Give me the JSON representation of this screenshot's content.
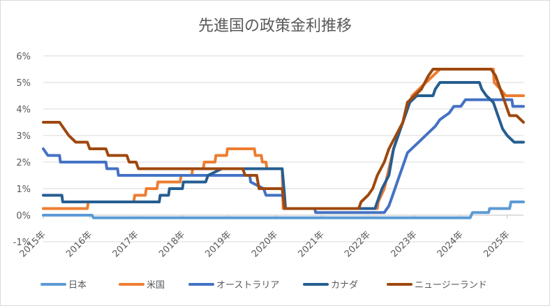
{
  "chart_data": {
    "type": "line",
    "title": "先進国の政策金利推移",
    "xlabel": "",
    "ylabel": "",
    "x_range": [
      2015.0,
      2025.35
    ],
    "ylim": [
      -1,
      6
    ],
    "y_ticks": [
      -1,
      0,
      1,
      2,
      3,
      4,
      5,
      6
    ],
    "y_tick_labels": [
      "-1%",
      "0%",
      "1%",
      "2%",
      "3%",
      "4%",
      "5%",
      "6%"
    ],
    "x_ticks": [
      2015,
      2016,
      2017,
      2018,
      2019,
      2020,
      2021,
      2022,
      2023,
      2024,
      2025
    ],
    "x_tick_labels": [
      "2015年",
      "2016年",
      "2017年",
      "2018年",
      "2019年",
      "2020年",
      "2021年",
      "2022年",
      "2023年",
      "2024年",
      "2025年"
    ],
    "grid": "horizontal",
    "legend_position": "bottom",
    "series": [
      {
        "name": "日本",
        "color": "#5b9bd5",
        "points": [
          [
            2015.0,
            0.0
          ],
          [
            2016.05,
            0.0
          ],
          [
            2016.08,
            -0.1
          ],
          [
            2024.2,
            -0.1
          ],
          [
            2024.25,
            0.1
          ],
          [
            2024.6,
            0.1
          ],
          [
            2024.62,
            0.25
          ],
          [
            2025.05,
            0.25
          ],
          [
            2025.08,
            0.5
          ],
          [
            2025.35,
            0.5
          ]
        ]
      },
      {
        "name": "米国",
        "color": "#ed7d31",
        "points": [
          [
            2015.0,
            0.25
          ],
          [
            2015.95,
            0.25
          ],
          [
            2015.97,
            0.5
          ],
          [
            2016.95,
            0.5
          ],
          [
            2016.97,
            0.75
          ],
          [
            2017.2,
            0.75
          ],
          [
            2017.22,
            1.0
          ],
          [
            2017.45,
            1.0
          ],
          [
            2017.47,
            1.25
          ],
          [
            2017.95,
            1.25
          ],
          [
            2017.97,
            1.5
          ],
          [
            2018.2,
            1.5
          ],
          [
            2018.22,
            1.75
          ],
          [
            2018.45,
            1.75
          ],
          [
            2018.47,
            2.0
          ],
          [
            2018.7,
            2.0
          ],
          [
            2018.72,
            2.25
          ],
          [
            2018.95,
            2.25
          ],
          [
            2018.97,
            2.5
          ],
          [
            2019.55,
            2.5
          ],
          [
            2019.57,
            2.25
          ],
          [
            2019.7,
            2.25
          ],
          [
            2019.72,
            2.0
          ],
          [
            2019.8,
            2.0
          ],
          [
            2019.82,
            1.75
          ],
          [
            2020.15,
            1.75
          ],
          [
            2020.17,
            0.25
          ],
          [
            2022.2,
            0.25
          ],
          [
            2022.22,
            0.5
          ],
          [
            2022.35,
            1.0
          ],
          [
            2022.45,
            1.75
          ],
          [
            2022.55,
            2.5
          ],
          [
            2022.7,
            3.25
          ],
          [
            2022.85,
            4.0
          ],
          [
            2022.95,
            4.5
          ],
          [
            2023.1,
            4.75
          ],
          [
            2023.25,
            5.0
          ],
          [
            2023.4,
            5.25
          ],
          [
            2023.55,
            5.5
          ],
          [
            2024.7,
            5.5
          ],
          [
            2024.72,
            5.0
          ],
          [
            2024.85,
            4.75
          ],
          [
            2024.97,
            4.5
          ],
          [
            2025.35,
            4.5
          ]
        ]
      },
      {
        "name": "オーストラリア",
        "color": "#4472c4",
        "points": [
          [
            2015.0,
            2.5
          ],
          [
            2015.1,
            2.25
          ],
          [
            2015.35,
            2.25
          ],
          [
            2015.37,
            2.0
          ],
          [
            2016.35,
            2.0
          ],
          [
            2016.37,
            1.75
          ],
          [
            2016.6,
            1.75
          ],
          [
            2016.62,
            1.5
          ],
          [
            2019.45,
            1.5
          ],
          [
            2019.47,
            1.25
          ],
          [
            2019.75,
            1.0
          ],
          [
            2019.8,
            0.75
          ],
          [
            2020.15,
            0.75
          ],
          [
            2020.2,
            0.5
          ],
          [
            2020.22,
            0.25
          ],
          [
            2020.85,
            0.25
          ],
          [
            2020.87,
            0.1
          ],
          [
            2022.35,
            0.1
          ],
          [
            2022.45,
            0.35
          ],
          [
            2022.55,
            0.85
          ],
          [
            2022.65,
            1.35
          ],
          [
            2022.75,
            1.85
          ],
          [
            2022.85,
            2.35
          ],
          [
            2023.0,
            2.6
          ],
          [
            2023.15,
            2.85
          ],
          [
            2023.3,
            3.1
          ],
          [
            2023.45,
            3.35
          ],
          [
            2023.55,
            3.6
          ],
          [
            2023.75,
            3.85
          ],
          [
            2023.85,
            4.1
          ],
          [
            2024.0,
            4.1
          ],
          [
            2024.1,
            4.35
          ],
          [
            2025.1,
            4.35
          ],
          [
            2025.12,
            4.1
          ],
          [
            2025.35,
            4.1
          ]
        ]
      },
      {
        "name": "カナダ",
        "color": "#255e91",
        "points": [
          [
            2015.0,
            0.75
          ],
          [
            2015.4,
            0.75
          ],
          [
            2015.42,
            0.5
          ],
          [
            2017.5,
            0.5
          ],
          [
            2017.52,
            0.75
          ],
          [
            2017.7,
            0.75
          ],
          [
            2017.72,
            1.0
          ],
          [
            2018.0,
            1.0
          ],
          [
            2018.02,
            1.25
          ],
          [
            2018.5,
            1.25
          ],
          [
            2018.55,
            1.5
          ],
          [
            2018.85,
            1.75
          ],
          [
            2020.15,
            1.75
          ],
          [
            2020.2,
            0.75
          ],
          [
            2020.22,
            0.25
          ],
          [
            2022.15,
            0.25
          ],
          [
            2022.2,
            0.5
          ],
          [
            2022.3,
            1.0
          ],
          [
            2022.45,
            1.5
          ],
          [
            2022.55,
            2.5
          ],
          [
            2022.7,
            3.25
          ],
          [
            2022.8,
            3.75
          ],
          [
            2022.9,
            4.25
          ],
          [
            2023.05,
            4.5
          ],
          [
            2023.4,
            4.5
          ],
          [
            2023.45,
            4.75
          ],
          [
            2023.55,
            5.0
          ],
          [
            2024.4,
            5.0
          ],
          [
            2024.45,
            4.75
          ],
          [
            2024.55,
            4.5
          ],
          [
            2024.7,
            4.25
          ],
          [
            2024.8,
            3.75
          ],
          [
            2024.9,
            3.25
          ],
          [
            2025.0,
            3.0
          ],
          [
            2025.15,
            2.75
          ],
          [
            2025.35,
            2.75
          ]
        ]
      },
      {
        "name": "ニュージーランド",
        "color": "#9e480e",
        "points": [
          [
            2015.0,
            3.5
          ],
          [
            2015.35,
            3.5
          ],
          [
            2015.45,
            3.25
          ],
          [
            2015.55,
            3.0
          ],
          [
            2015.7,
            2.75
          ],
          [
            2015.95,
            2.75
          ],
          [
            2016.0,
            2.5
          ],
          [
            2016.35,
            2.5
          ],
          [
            2016.4,
            2.25
          ],
          [
            2016.8,
            2.25
          ],
          [
            2016.85,
            2.0
          ],
          [
            2017.0,
            2.0
          ],
          [
            2017.05,
            1.75
          ],
          [
            2019.3,
            1.75
          ],
          [
            2019.35,
            1.5
          ],
          [
            2019.6,
            1.5
          ],
          [
            2019.65,
            1.0
          ],
          [
            2020.15,
            1.0
          ],
          [
            2020.2,
            0.25
          ],
          [
            2021.8,
            0.25
          ],
          [
            2021.85,
            0.5
          ],
          [
            2022.0,
            0.75
          ],
          [
            2022.1,
            1.0
          ],
          [
            2022.2,
            1.5
          ],
          [
            2022.35,
            2.0
          ],
          [
            2022.45,
            2.5
          ],
          [
            2022.6,
            3.0
          ],
          [
            2022.75,
            3.5
          ],
          [
            2022.85,
            4.25
          ],
          [
            2023.15,
            4.75
          ],
          [
            2023.3,
            5.25
          ],
          [
            2023.4,
            5.5
          ],
          [
            2024.65,
            5.5
          ],
          [
            2024.75,
            5.25
          ],
          [
            2024.85,
            4.75
          ],
          [
            2024.95,
            4.25
          ],
          [
            2025.05,
            3.75
          ],
          [
            2025.2,
            3.75
          ],
          [
            2025.35,
            3.5
          ]
        ]
      }
    ]
  }
}
